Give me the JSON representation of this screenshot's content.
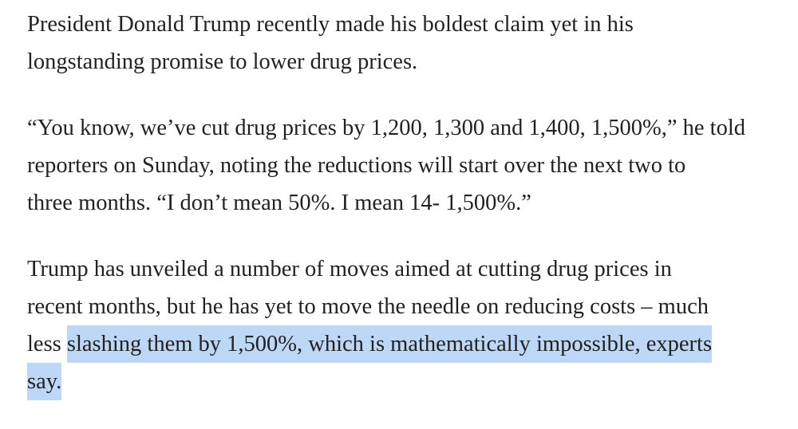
{
  "paragraphs": [
    {
      "lines": [
        [
          {
            "text": "President Donald Trump recently made his boldest claim yet in his"
          }
        ],
        [
          {
            "text": "longstanding promise to lower drug prices."
          }
        ]
      ]
    },
    {
      "lines": [
        [
          {
            "text": "“You know, we’ve cut drug prices by 1,200, 1,300 and 1,400, 1,500%,” he told"
          }
        ],
        [
          {
            "text": "reporters on Sunday, noting the reductions will start over the next two to"
          }
        ],
        [
          {
            "text": "three months. “I don’t mean 50%. I mean 14- 1,500%.”"
          }
        ]
      ]
    },
    {
      "lines": [
        [
          {
            "text": "Trump has unveiled a number of moves aimed at cutting drug prices in"
          }
        ],
        [
          {
            "text": "recent months, but he has yet to move the needle on reducing costs – much"
          }
        ],
        [
          {
            "text": "less "
          },
          {
            "text": "slashing them by 1,500%, which is mathematically impossible, experts",
            "highlighted": true
          }
        ],
        [
          {
            "text": "say.",
            "highlighted": true
          }
        ]
      ]
    }
  ],
  "highlight_color": "#bdd7f6"
}
